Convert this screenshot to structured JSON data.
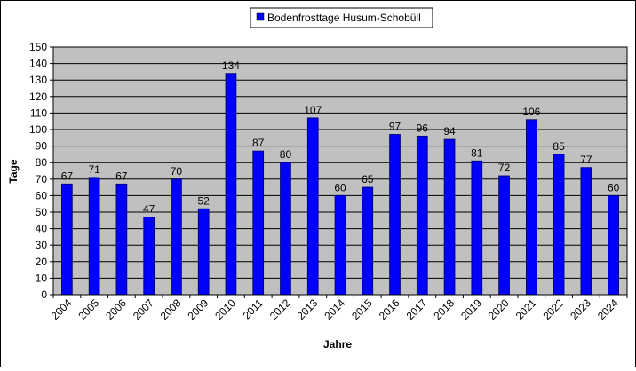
{
  "chart_data": {
    "type": "bar",
    "title": "",
    "xlabel": "Jahre",
    "ylabel": "Tage",
    "ylim": [
      0,
      150
    ],
    "ytick_step": 10,
    "grid": true,
    "legend_position": "top-center",
    "colors": {
      "plot_background": "#c0c0c0",
      "bar_fill": "#0000ff",
      "bar_stroke": "#000080",
      "gridline": "#000000"
    },
    "categories": [
      "2004",
      "2005",
      "2006",
      "2007",
      "2008",
      "2009",
      "2010",
      "2011",
      "2012",
      "2013",
      "2014",
      "2015",
      "2016",
      "2017",
      "2018",
      "2019",
      "2020",
      "2021",
      "2022",
      "2023",
      "2024"
    ],
    "series": [
      {
        "name": "Bodenfrosttage Husum-Schobüll",
        "values": [
          67,
          71,
          67,
          47,
          70,
          52,
          134,
          87,
          80,
          107,
          60,
          65,
          97,
          96,
          94,
          81,
          72,
          106,
          85,
          77,
          60
        ]
      }
    ]
  }
}
